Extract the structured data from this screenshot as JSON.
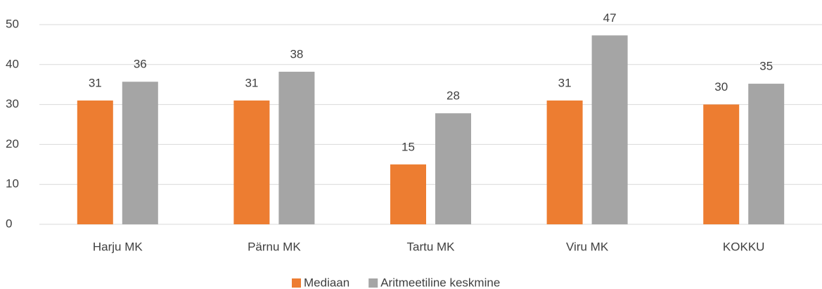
{
  "chart_data": {
    "type": "bar",
    "categories": [
      "Harju MK",
      "Pärnu MK",
      "Tartu MK",
      "Viru MK",
      "KOKKU"
    ],
    "series": [
      {
        "name": "Mediaan",
        "color": "#ed7d31",
        "values": [
          31,
          31,
          15,
          31,
          30
        ]
      },
      {
        "name": "Aritmeetiline keskmine",
        "color": "#a5a5a5",
        "values": [
          35.7,
          38.2,
          27.8,
          47.3,
          35.2
        ],
        "value_labels": [
          "36",
          "38",
          "28",
          "47",
          "35"
        ]
      }
    ],
    "ylim": [
      0,
      50
    ],
    "yticks": [
      0,
      10,
      20,
      30,
      40,
      50
    ],
    "grid": true,
    "legend": "bottom"
  }
}
